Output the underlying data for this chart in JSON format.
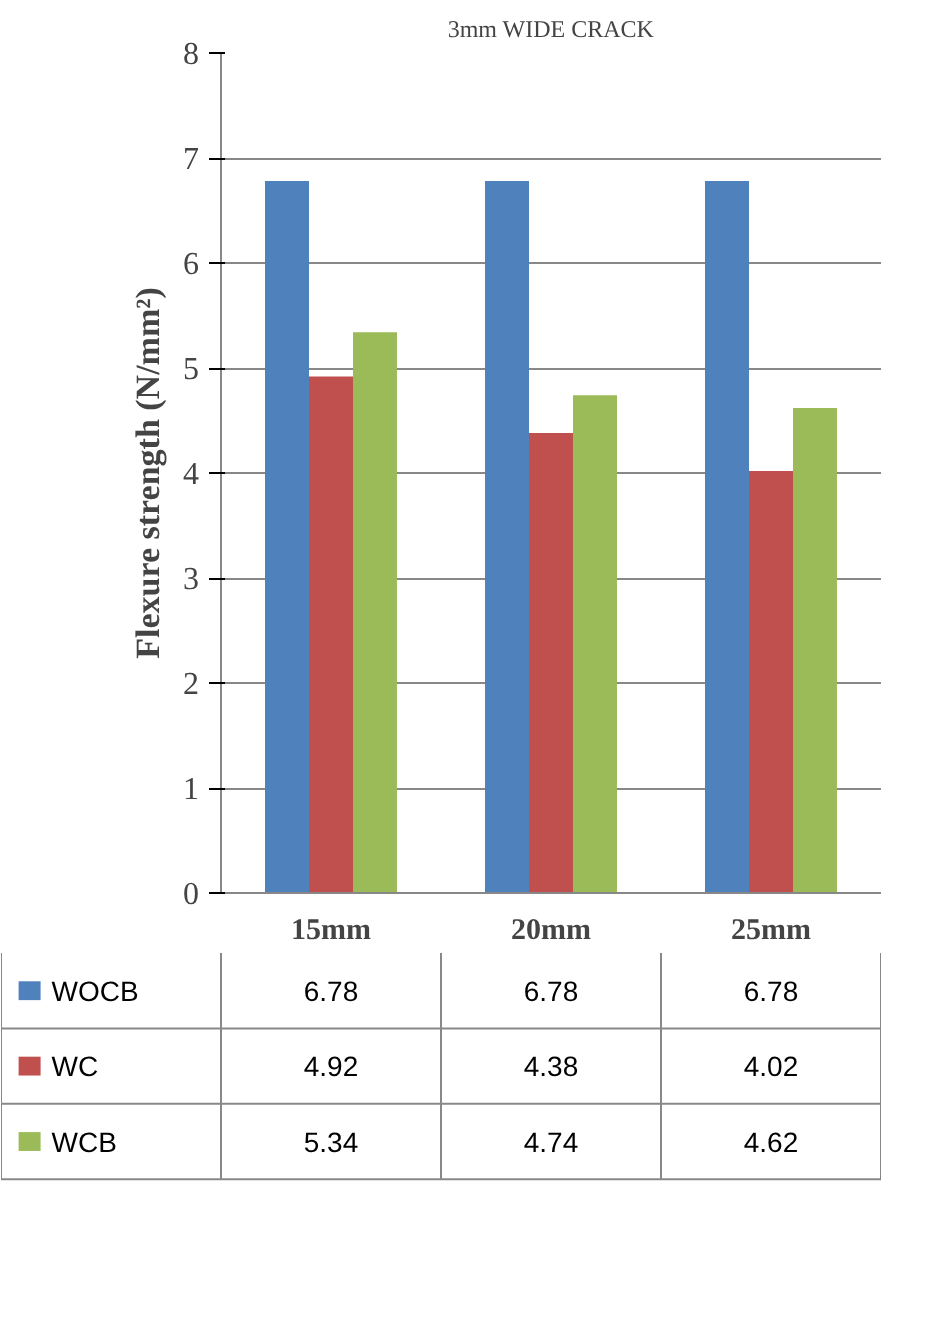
{
  "chart_data": {
    "type": "bar",
    "title": "3mm WIDE CRACK",
    "ylabel": "Flexure strength (N/mm²)",
    "categories": [
      "15mm",
      "20mm",
      "25mm"
    ],
    "series": [
      {
        "name": "WOCB",
        "color": "#4f81bd",
        "values": [
          6.78,
          6.78,
          6.78
        ]
      },
      {
        "name": "WC",
        "color": "#c0504d",
        "values": [
          4.92,
          4.38,
          4.02
        ]
      },
      {
        "name": "WCB",
        "color": "#9bbb59",
        "values": [
          5.34,
          4.74,
          4.62
        ]
      }
    ],
    "ylim": [
      0,
      8
    ],
    "yticks": [
      0,
      1,
      2,
      3,
      4,
      5,
      6,
      7,
      8
    ],
    "grid": "y",
    "legend": "bottom",
    "data_labels": true
  }
}
